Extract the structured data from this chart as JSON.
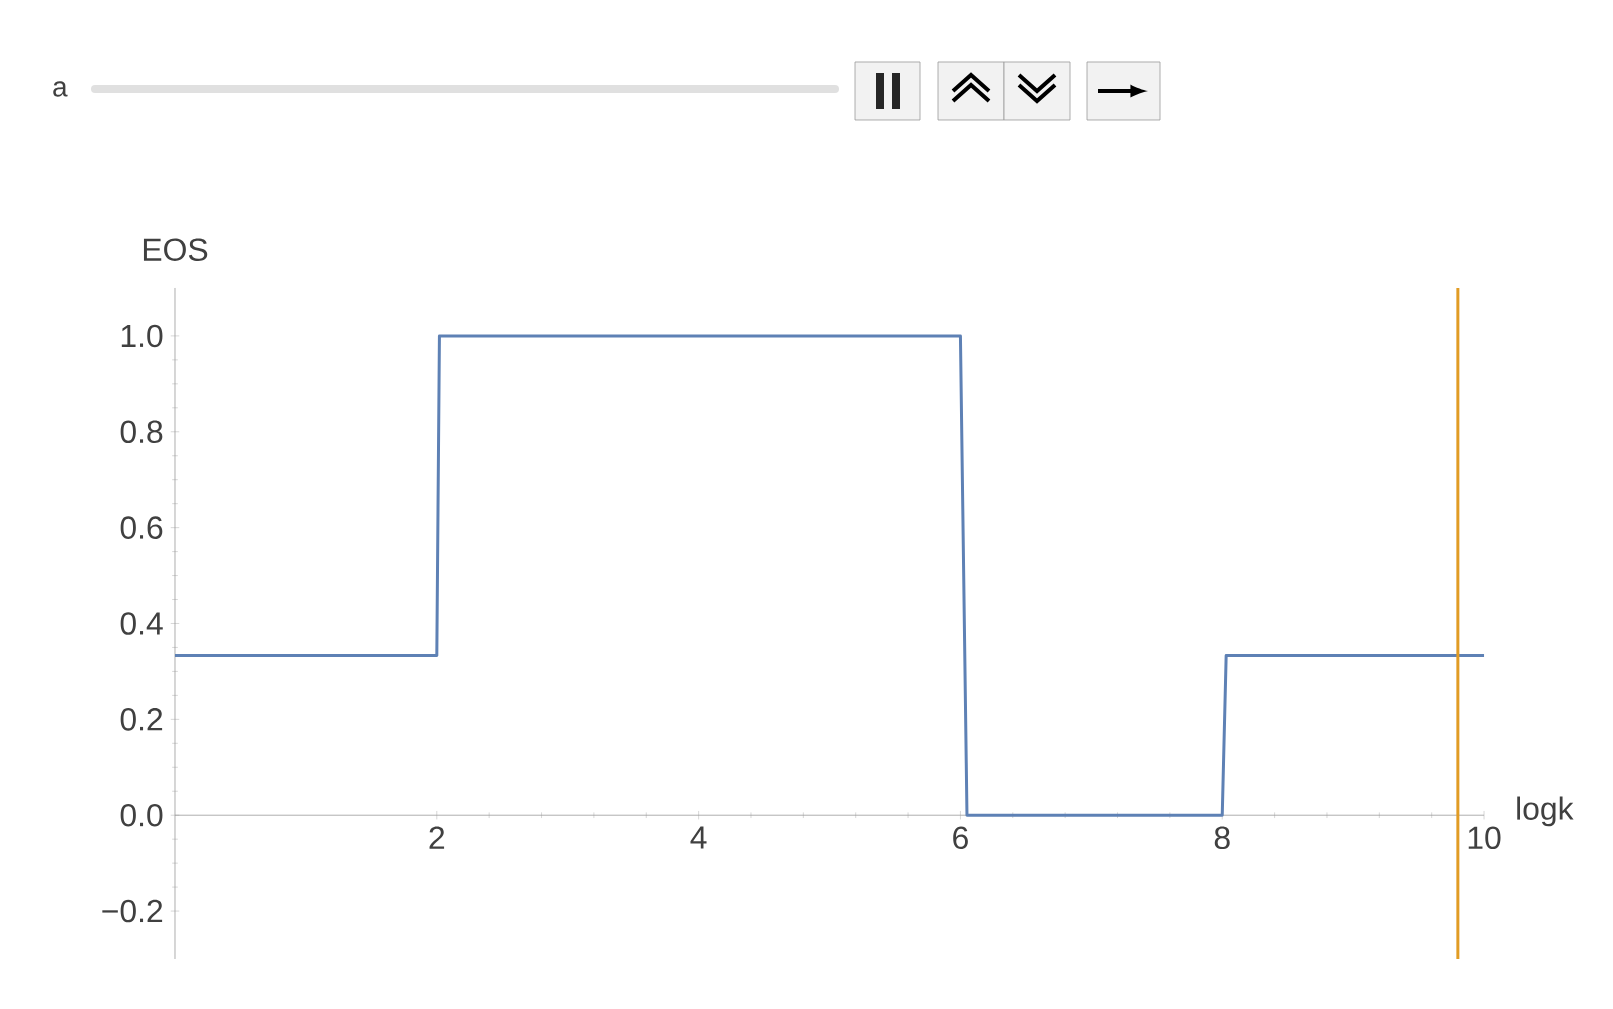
{
  "chart_data": {
    "type": "line",
    "xlabel": "logk",
    "ylabel": "EOS",
    "annotations": [
      "a"
    ],
    "series": [
      {
        "color": "#5e81b5",
        "x": [
          0,
          2,
          2.02,
          6,
          6.05,
          8,
          8.03,
          10
        ],
        "values": [
          0.333,
          0.333,
          1,
          1,
          0,
          0,
          0.333,
          0.333
        ]
      }
    ],
    "xlim": [
      0,
      10
    ],
    "ylim": [
      -0.3,
      1.1
    ],
    "xticks": [
      2,
      4,
      6,
      8,
      10
    ],
    "yticks": [
      {
        "value": -0.2,
        "label": "−0.2"
      },
      {
        "value": 0,
        "label": "0.0"
      },
      {
        "value": 0.2,
        "label": "0.2"
      },
      {
        "value": 0.4,
        "label": "0.4"
      },
      {
        "value": 0.6,
        "label": "0.6"
      },
      {
        "value": 0.8,
        "label": "0.8"
      },
      {
        "value": 1,
        "label": "1.0"
      }
    ],
    "ref_lines": [
      {
        "axis": "x",
        "value": 9.8,
        "color": "#e19c24"
      }
    ],
    "grid": false,
    "marker": "none",
    "line_style": "solid"
  }
}
